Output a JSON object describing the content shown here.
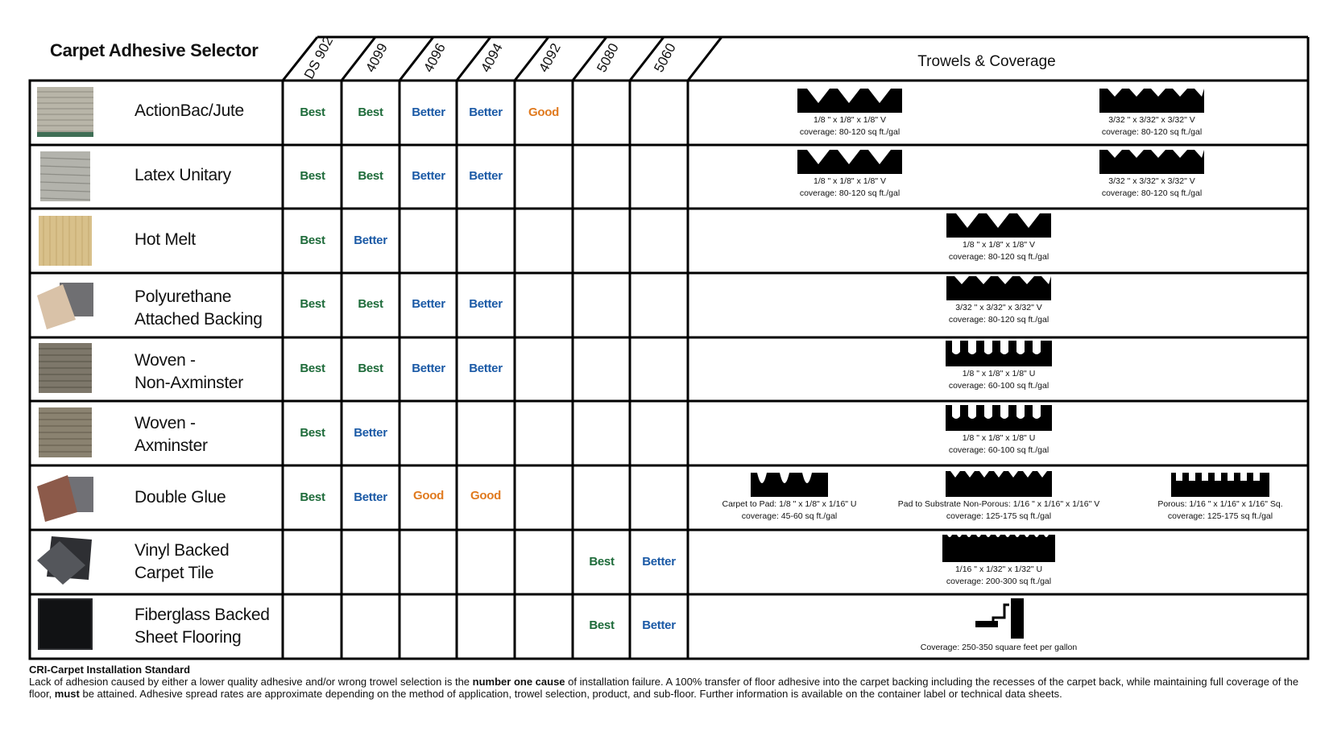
{
  "title": "Carpet Adhesive Selector",
  "columns": [
    "DS 902",
    "4099",
    "4096",
    "4094",
    "4092",
    "5080",
    "5060"
  ],
  "trowels_header": "Trowels & Coverage",
  "rating_colors": {
    "Best": "#1e6b3a",
    "Better": "#1b5aa6",
    "Good": "#e07a1f"
  },
  "rows": [
    {
      "name_lines": [
        "ActionBac/Jute"
      ],
      "swatch": "jute-carpet-sample",
      "ratings": [
        "Best",
        "Best",
        "Better",
        "Better",
        "Good",
        "",
        ""
      ],
      "trowels": [
        {
          "shape": "v-notch",
          "label": "1/8 \" x 1/8\" x 1/8\" V",
          "coverage": "coverage: 80-120 sq ft./gal"
        },
        {
          "shape": "v-notch-small",
          "label": "3/32 \" x 3/32\" x 3/32\" V",
          "coverage": "coverage: 80-120 sq ft./gal"
        }
      ]
    },
    {
      "name_lines": [
        "Latex Unitary"
      ],
      "swatch": "latex-unitary-sample",
      "ratings": [
        "Best",
        "Best",
        "Better",
        "Better",
        "",
        "",
        ""
      ],
      "trowels": [
        {
          "shape": "v-notch",
          "label": "1/8 \" x 1/8\" x 1/8\" V",
          "coverage": "coverage: 80-120 sq ft./gal"
        },
        {
          "shape": "v-notch-small",
          "label": "3/32 \" x 3/32\" x 3/32\" V",
          "coverage": "coverage: 80-120 sq ft./gal"
        }
      ]
    },
    {
      "name_lines": [
        "Hot Melt"
      ],
      "swatch": "hot-melt-sample",
      "ratings": [
        "Best",
        "Better",
        "",
        "",
        "",
        "",
        ""
      ],
      "trowels": [
        {
          "shape": "v-notch",
          "label": "1/8 \" x 1/8\" x 1/8\" V",
          "coverage": "coverage: 80-120 sq ft./gal"
        }
      ]
    },
    {
      "name_lines": [
        "Polyurethane",
        "Attached Backing"
      ],
      "swatch": "polyurethane-sample",
      "ratings": [
        "Best",
        "Best",
        "Better",
        "Better",
        "",
        "",
        ""
      ],
      "trowels": [
        {
          "shape": "v-notch-small",
          "label": "3/32 \" x 3/32\" x 3/32\" V",
          "coverage": "coverage: 80-120 sq ft./gal"
        }
      ]
    },
    {
      "name_lines": [
        "Woven -",
        "Non-Axminster"
      ],
      "swatch": "woven-non-axminster-sample",
      "ratings": [
        "Best",
        "Best",
        "Better",
        "Better",
        "",
        "",
        ""
      ],
      "trowels": [
        {
          "shape": "u-notch",
          "label": "1/8 \" x 1/8\" x 1/8\" U",
          "coverage": "coverage: 60-100 sq ft./gal"
        }
      ]
    },
    {
      "name_lines": [
        "Woven -",
        "Axminster"
      ],
      "swatch": "woven-axminster-sample",
      "ratings": [
        "Best",
        "Better",
        "",
        "",
        "",
        "",
        ""
      ],
      "trowels": [
        {
          "shape": "u-notch",
          "label": "1/8 \" x 1/8\" x 1/8\" U",
          "coverage": "coverage: 60-100 sq ft./gal"
        }
      ]
    },
    {
      "name_lines": [
        "Double Glue"
      ],
      "swatch": "double-glue-sample",
      "ratings": [
        "Best",
        "Better",
        "Good",
        "Good",
        "",
        "",
        ""
      ],
      "trowels": [
        {
          "shape": "u-notch-wide",
          "label": "Carpet to Pad:  1/8 \" x 1/8\" x 1/16\" U",
          "coverage": "coverage: 45-60 sq ft./gal"
        },
        {
          "shape": "v-notch-fine",
          "label": "Pad to Substrate Non-Porous:  1/16 \" x 1/16\" x 1/16\" V",
          "coverage": "coverage: 125-175 sq ft./gal"
        },
        {
          "shape": "square-notch",
          "label": "Porous:  1/16 \" x 1/16\" x 1/16\" Sq.",
          "coverage": "coverage: 125-175 sq ft./gal"
        }
      ]
    },
    {
      "name_lines": [
        "Vinyl Backed",
        "Carpet Tile"
      ],
      "swatch": "vinyl-backed-tile-sample",
      "ratings": [
        "",
        "",
        "",
        "",
        "",
        "Best",
        "Better"
      ],
      "trowels": [
        {
          "shape": "u-notch-micro",
          "label": "1/16 \" x 1/32\" x 1/32\" U",
          "coverage": "coverage: 200-300 sq ft./gal"
        }
      ]
    },
    {
      "name_lines": [
        "Fiberglass Backed",
        "Sheet Flooring"
      ],
      "swatch": "fiberglass-backed-sample",
      "ratings": [
        "",
        "",
        "",
        "",
        "",
        "Best",
        "Better"
      ],
      "trowels": [
        {
          "shape": "roller",
          "label": "",
          "coverage": "Coverage: 250-350 square feet per gallon"
        }
      ]
    }
  ],
  "footer": {
    "title": "CRI-Carpet Installation Standard",
    "text_1": "Lack of adhesion caused by either a lower quality adhesive and/or wrong trowel selection is the ",
    "emph_1": "number one cause",
    "text_2": " of installation failure. A 100% transfer of floor adhesive into the carpet backing including the recesses of the carpet back, while maintaining full coverage of the floor, ",
    "emph_2": "must",
    "text_3": " be attained. Adhesive spread rates are approximate depending on the method of application, trowel selection, product, and sub-floor. Further information is available on the container label or technical data sheets."
  }
}
